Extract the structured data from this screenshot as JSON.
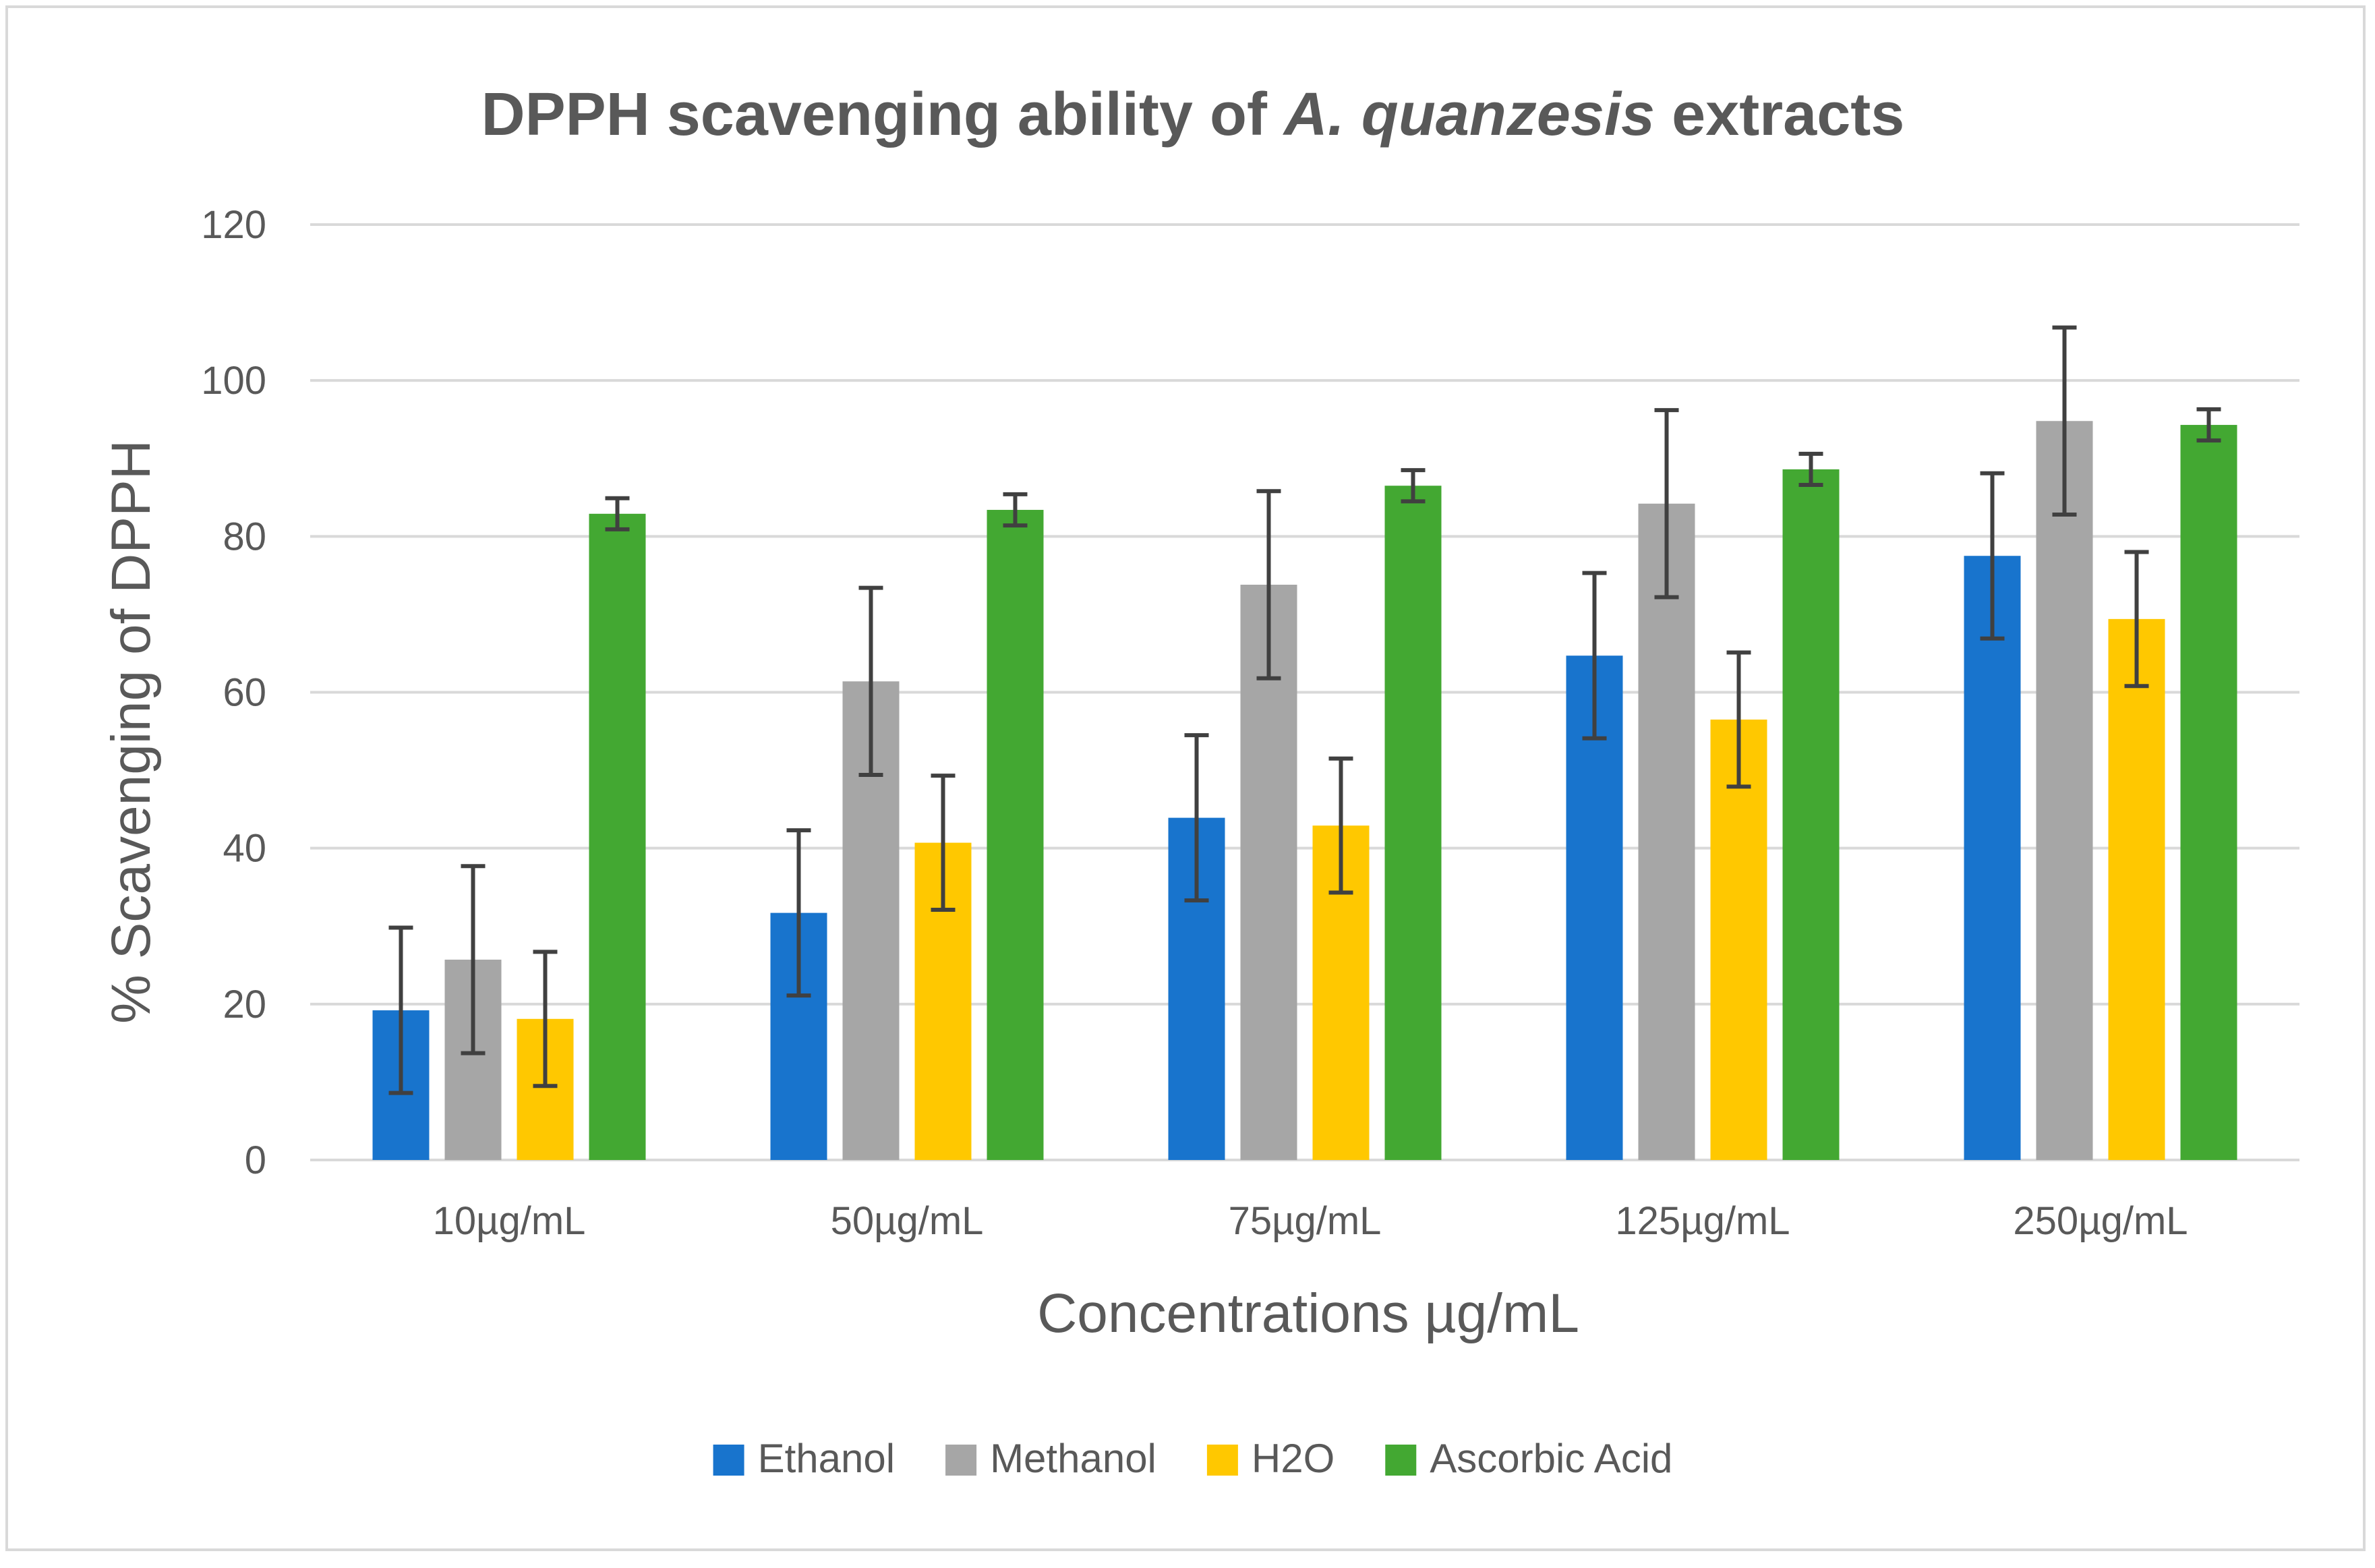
{
  "chart_data": {
    "type": "bar",
    "title": {
      "prefix": "DPPH scavenging ability of ",
      "italic": "A. quanzesis",
      "suffix": " extracts"
    },
    "xlabel": "Concentrations µg/mL",
    "ylabel": "% Scavenging of DPPH",
    "ylim": [
      0,
      120
    ],
    "yticks": [
      0,
      20,
      40,
      60,
      80,
      100,
      120
    ],
    "grid": true,
    "legend_position": "bottom",
    "categories": [
      "10µg/mL",
      "50µg/mL",
      "75µg/mL",
      "125µg/mL",
      "250µg/mL"
    ],
    "series": [
      {
        "name": "Ethanol",
        "color": "#1874cd",
        "values": [
          19.2,
          31.7,
          43.9,
          64.7,
          77.5
        ],
        "errors": [
          10.6,
          10.6,
          10.6,
          10.6,
          10.6
        ]
      },
      {
        "name": "Methanol",
        "color": "#a6a6a6",
        "values": [
          25.7,
          61.4,
          73.8,
          84.2,
          94.8
        ],
        "errors": [
          12.0,
          12.0,
          12.0,
          12.0,
          12.0
        ]
      },
      {
        "name": "H2O",
        "color": "#ffc800",
        "values": [
          18.1,
          40.7,
          42.9,
          56.5,
          69.4
        ],
        "errors": [
          8.6,
          8.6,
          8.6,
          8.6,
          8.6
        ]
      },
      {
        "name": "Ascorbic Acid",
        "color": "#43a832",
        "values": [
          82.9,
          83.4,
          86.5,
          88.6,
          94.3
        ],
        "errors": [
          2.0,
          2.0,
          2.0,
          2.0,
          2.0
        ]
      }
    ]
  }
}
